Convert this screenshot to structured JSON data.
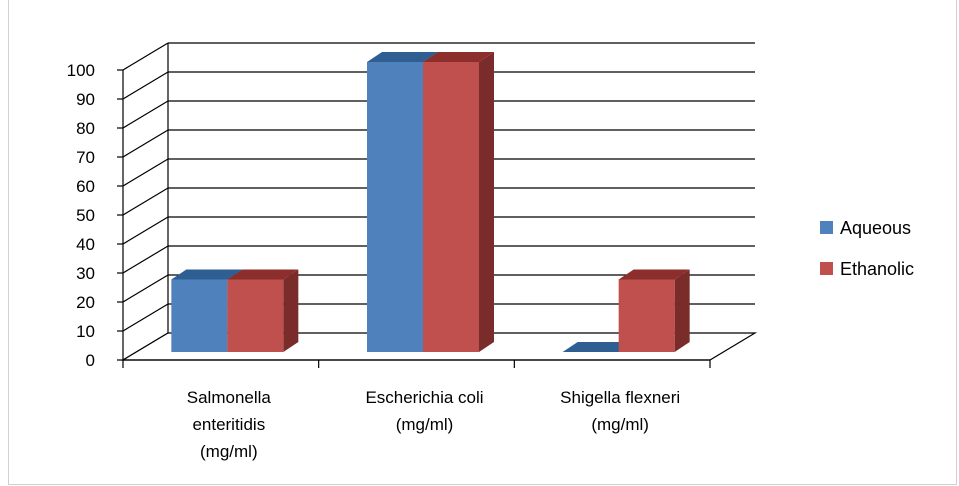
{
  "chart_data": {
    "type": "bar",
    "categories": [
      [
        "Salmonella",
        "enteritidis",
        "(mg/ml)"
      ],
      [
        "Escherichia coli",
        "(mg/ml)"
      ],
      [
        "Shigella flexneri",
        "(mg/ml)"
      ]
    ],
    "series": [
      {
        "name": "Aqueous",
        "values": [
          25,
          100,
          0
        ],
        "color": "#4F81BD",
        "top_color": "#2F5E92",
        "side_color": "#385D8A"
      },
      {
        "name": "Ethanolic",
        "values": [
          25,
          100,
          25
        ],
        "color": "#C0504D",
        "top_color": "#8C2E2B",
        "side_color": "#7A2C2A"
      }
    ],
    "yticks": [
      "0",
      "10",
      "20",
      "30",
      "40",
      "50",
      "60",
      "70",
      "80",
      "90",
      "100"
    ],
    "ylim": [
      0,
      100
    ],
    "grid": true,
    "legend_position": "right",
    "style_3d": true
  }
}
